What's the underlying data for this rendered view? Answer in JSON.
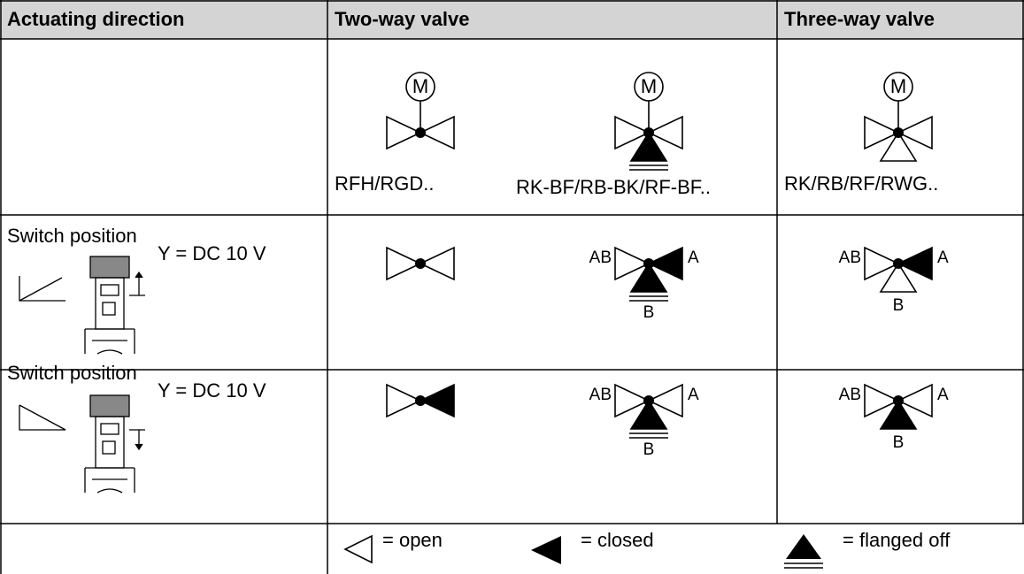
{
  "table": {
    "header": [
      "Actuating direction",
      "Two-way valve",
      "Three-way valve"
    ],
    "valves": [
      {
        "motor": "M",
        "label": "RFH/RGD.."
      },
      {
        "motor": "M",
        "label": "RK-BF/RB-BK/RF-BF.."
      },
      {
        "motor": "M",
        "label": "RK/RB/RF/RWG.."
      }
    ],
    "rows": [
      {
        "title": "Switch position",
        "signal": "Y = DC 10 V",
        "symbols": [
          {},
          {
            "ab": "AB",
            "a": "A",
            "b": "B"
          },
          {
            "ab": "AB",
            "a": "A",
            "b": "B"
          }
        ]
      },
      {
        "title": "Switch position",
        "signal": "Y = DC 10 V",
        "symbols": [
          {},
          {
            "ab": "AB",
            "a": "A",
            "b": "B"
          },
          {
            "ab": "AB",
            "a": "A",
            "b": "B"
          }
        ]
      }
    ],
    "legend": [
      "= open",
      "= closed",
      "= flanged off"
    ]
  }
}
